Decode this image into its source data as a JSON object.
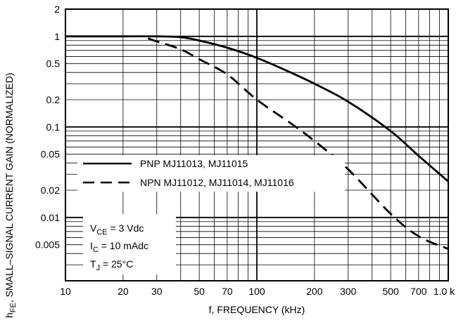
{
  "chart_data": {
    "type": "line",
    "title": "",
    "xlabel": "f, FREQUENCY (kHz)",
    "ylabel_main": "h",
    "ylabel_sub": "FE",
    "ylabel_rest": ", SMALL–SIGNAL CURRENT GAIN (NORMALIZED)",
    "x_scale": "log",
    "y_scale": "log",
    "xlim": [
      10,
      1000
    ],
    "ylim": [
      0.002,
      2
    ],
    "grid": true,
    "x_ticks": [
      {
        "value": 10,
        "label": "10"
      },
      {
        "value": 20,
        "label": "20"
      },
      {
        "value": 30,
        "label": "30"
      },
      {
        "value": 50,
        "label": "50"
      },
      {
        "value": 70,
        "label": "70"
      },
      {
        "value": 100,
        "label": "100"
      },
      {
        "value": 200,
        "label": "200"
      },
      {
        "value": 300,
        "label": "300"
      },
      {
        "value": 500,
        "label": "500"
      },
      {
        "value": 700,
        "label": "700"
      },
      {
        "value": 1000,
        "label": "1.0 k"
      }
    ],
    "y_ticks": [
      {
        "value": 2,
        "label": "2"
      },
      {
        "value": 1,
        "label": "1"
      },
      {
        "value": 0.5,
        "label": "0.5"
      },
      {
        "value": 0.2,
        "label": "0.2"
      },
      {
        "value": 0.1,
        "label": "0.1"
      },
      {
        "value": 0.05,
        "label": "0.05"
      },
      {
        "value": 0.02,
        "label": "0.02"
      },
      {
        "value": 0.01,
        "label": "0.01"
      },
      {
        "value": 0.005,
        "label": "0.005"
      }
    ],
    "series": [
      {
        "name": "PNP MJ11013, MJ11015",
        "style": "solid",
        "x": [
          10,
          20,
          30,
          40,
          50,
          70,
          100,
          150,
          200,
          300,
          500,
          700,
          1000
        ],
        "y": [
          1.0,
          1.0,
          1.0,
          0.98,
          0.9,
          0.75,
          0.58,
          0.4,
          0.3,
          0.19,
          0.09,
          0.048,
          0.025
        ]
      },
      {
        "name": "NPN MJ11012, MJ11014, MJ11016",
        "style": "dashed",
        "x": [
          27,
          30,
          40,
          50,
          70,
          100,
          150,
          200,
          300,
          500,
          700,
          1000
        ],
        "y": [
          0.95,
          0.88,
          0.72,
          0.56,
          0.38,
          0.2,
          0.11,
          0.07,
          0.034,
          0.011,
          0.0062,
          0.0045
        ]
      }
    ],
    "legend_placement": "lower-left",
    "conditions": [
      {
        "main": "V",
        "sub": "CE",
        "rest": " = 3 Vdc"
      },
      {
        "main": "I",
        "sub": "C",
        "rest": " = 10 mAdc"
      },
      {
        "main": "T",
        "sub": "J",
        "rest": " = 25°C"
      }
    ]
  }
}
